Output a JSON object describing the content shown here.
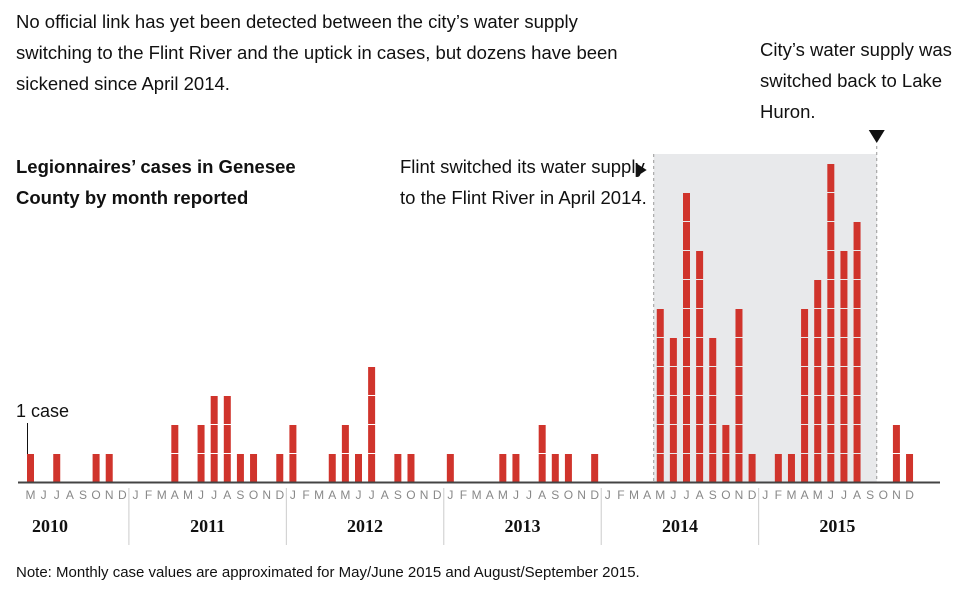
{
  "intro_text": "No official link has yet been detected between the city’s water supply switching to the Flint River and the uptick in cases, but dozens have been sickened since April 2014.",
  "annotation_switch_back": "City’s water supply was switched back to Lake Huron.",
  "annotation_switch": "Flint switched its water supply to the Flint River in April 2014.",
  "note": "Note: Monthly case values are approximated for May/June 2015 and August/September 2015.",
  "one_case_label": "1 case",
  "colors": {
    "bar": "#d0342c",
    "shade": "#e8e9eb",
    "axis": "#444444",
    "divider": "#cccccc"
  },
  "chart_data": {
    "type": "bar",
    "title": "Legionnaires’ cases in Genesee County by month reported",
    "xlabel": "",
    "ylabel": "",
    "ylim": [
      0,
      11
    ],
    "unit_label": "1 case",
    "years": [
      "2010",
      "2011",
      "2012",
      "2013",
      "2014",
      "2015"
    ],
    "month_letters": [
      "J",
      "F",
      "M",
      "A",
      "M",
      "J",
      "J",
      "A",
      "S",
      "O",
      "N",
      "D"
    ],
    "start_month": "May 2010",
    "end_month": "December 2015",
    "months": [
      "M",
      "J",
      "J",
      "A",
      "S",
      "O",
      "N",
      "D",
      "J",
      "F",
      "M",
      "A",
      "M",
      "J",
      "J",
      "A",
      "S",
      "O",
      "N",
      "D",
      "J",
      "F",
      "M",
      "A",
      "M",
      "J",
      "J",
      "A",
      "S",
      "O",
      "N",
      "D",
      "J",
      "F",
      "M",
      "A",
      "M",
      "J",
      "J",
      "A",
      "S",
      "O",
      "N",
      "D",
      "J",
      "F",
      "M",
      "A",
      "M",
      "J",
      "J",
      "A",
      "S",
      "O",
      "N",
      "D",
      "J",
      "F",
      "M",
      "A",
      "M",
      "J",
      "J",
      "A",
      "S",
      "O",
      "N",
      "D"
    ],
    "values": [
      1,
      0,
      1,
      0,
      0,
      1,
      1,
      0,
      0,
      0,
      0,
      2,
      0,
      2,
      3,
      3,
      1,
      1,
      0,
      1,
      2,
      0,
      0,
      1,
      2,
      1,
      4,
      0,
      1,
      1,
      0,
      0,
      1,
      0,
      0,
      0,
      1,
      1,
      0,
      2,
      1,
      1,
      0,
      1,
      0,
      0,
      0,
      0,
      6,
      5,
      10,
      8,
      5,
      2,
      6,
      1,
      0,
      1,
      1,
      6,
      7,
      11,
      8,
      9,
      0,
      0,
      2,
      1
    ],
    "shaded_period": [
      "Apr 2014",
      "Sep 2015"
    ],
    "annotations": [
      {
        "text": "Flint switched its water supply to the Flint River in April 2014.",
        "month": "Apr 2014"
      },
      {
        "text": "City’s water supply was switched back to Lake Huron.",
        "month": "Oct 2015"
      }
    ],
    "grid": false
  }
}
